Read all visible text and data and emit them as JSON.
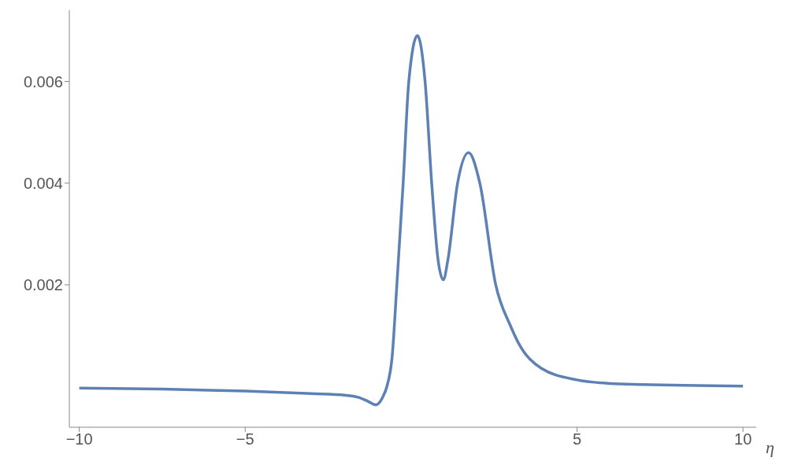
{
  "chart_data": {
    "type": "line",
    "xlabel": "η",
    "xlim": [
      -10.3,
      10.4
    ],
    "ylim": [
      -0.0008,
      0.0074
    ],
    "xticks": [
      {
        "value": -10,
        "label": "−10"
      },
      {
        "value": -5,
        "label": "−5"
      },
      5,
      10
    ],
    "yticks": [
      0.002,
      0.004,
      0.006
    ],
    "grid": false,
    "legend": false,
    "marker": "none",
    "line_style": "solid",
    "series": [
      {
        "color": "#5e81b5",
        "x": [
          -10,
          -7.5,
          -5,
          -3,
          -2,
          -1.6,
          -1.3,
          -1.06,
          -0.85,
          -0.73,
          -0.57,
          -0.43,
          -0.24,
          -0.07,
          0.19,
          0.42,
          0.62,
          0.81,
          0.97,
          1.11,
          1.4,
          1.73,
          2.07,
          2.55,
          2.99,
          3.24,
          3.92,
          5,
          6,
          7,
          10
        ],
        "values": [
          -3e-05,
          -5e-05,
          -9e-05,
          -0.00014,
          -0.00017,
          -0.00021,
          -0.00029,
          -0.00036,
          -0.0002,
          0,
          0.0006,
          0.002,
          0.004,
          0.006,
          0.0069,
          0.006,
          0.004,
          0.0025,
          0.0021,
          0.0025,
          0.004,
          0.0046,
          0.004,
          0.002,
          0.0012,
          0.00085,
          0.00036,
          0.00013,
          6e-05,
          4e-05,
          1e-05
        ]
      }
    ]
  }
}
